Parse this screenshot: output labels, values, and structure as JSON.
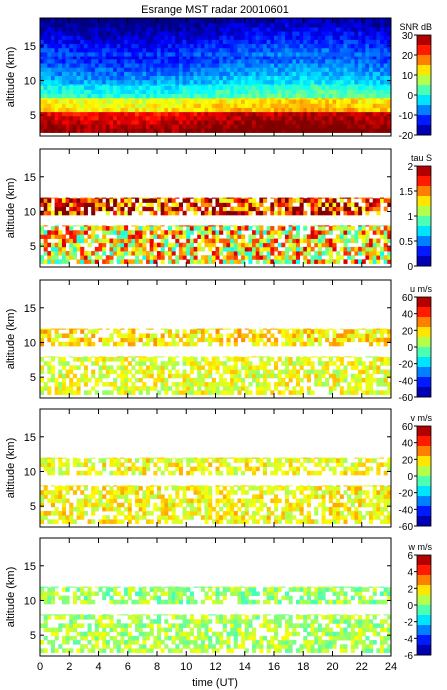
{
  "figure": {
    "title": "Esrange MST radar 20010601",
    "xlabel": "time (UT)",
    "x_ticks": [
      "0",
      "2",
      "4",
      "6",
      "8",
      "10",
      "12",
      "14",
      "16",
      "18",
      "20",
      "22",
      "24"
    ]
  },
  "chart_data": [
    {
      "type": "heatmap",
      "title": "Esrange MST radar 20010601",
      "xlabel": "",
      "ylabel": "altitude (km)",
      "xlim": [
        0,
        24
      ],
      "ylim": [
        2,
        19
      ],
      "y_ticks": [
        "5",
        "10",
        "15"
      ],
      "colorbar": {
        "label": "SNR dB",
        "range": [
          -20,
          30
        ],
        "ticks": [
          "30",
          "20",
          "10",
          "0",
          "-10",
          "-20"
        ],
        "colormap": "jet"
      },
      "field": "snr",
      "layers": [
        {
          "alt": [
            2.5,
            5.5
          ],
          "value": 27
        },
        {
          "alt": [
            5.5,
            7.5
          ],
          "value": 12
        },
        {
          "alt": [
            7.5,
            9.5
          ],
          "value": 0
        },
        {
          "alt": [
            9.5,
            13.5
          ],
          "value": -8
        },
        {
          "alt": [
            13.5,
            19
          ],
          "value": -15
        }
      ]
    },
    {
      "type": "heatmap",
      "xlabel": "",
      "ylabel": "altitude (km)",
      "xlim": [
        0,
        24
      ],
      "ylim": [
        2,
        19
      ],
      "y_ticks": [
        "5",
        "10",
        "15"
      ],
      "colorbar": {
        "label": "tau S",
        "range": [
          0,
          2
        ],
        "ticks": [
          "2",
          "1.5",
          "1",
          "0.5",
          "0"
        ],
        "colormap": "jet"
      },
      "field": "tau",
      "layers": [
        {
          "alt": [
            2.5,
            8.0
          ],
          "value": 1.3
        },
        {
          "alt": [
            9.5,
            12.0
          ],
          "value": 1.7
        }
      ]
    },
    {
      "type": "heatmap",
      "xlabel": "",
      "ylabel": "altitude (km)",
      "xlim": [
        0,
        24
      ],
      "ylim": [
        2,
        19
      ],
      "y_ticks": [
        "5",
        "10",
        "15"
      ],
      "colorbar": {
        "label": "u m/s",
        "range": [
          -60,
          60
        ],
        "ticks": [
          "60",
          "40",
          "20",
          "0",
          "-20",
          "-40",
          "-60"
        ],
        "colormap": "jet"
      },
      "field": "u",
      "layers": [
        {
          "alt": [
            2.5,
            8.0
          ],
          "value": 12
        },
        {
          "alt": [
            9.5,
            12.0
          ],
          "value": 18
        }
      ]
    },
    {
      "type": "heatmap",
      "xlabel": "",
      "ylabel": "altitude (km)",
      "xlim": [
        0,
        24
      ],
      "ylim": [
        2,
        19
      ],
      "y_ticks": [
        "5",
        "10",
        "15"
      ],
      "colorbar": {
        "label": "v m/s",
        "range": [
          -60,
          60
        ],
        "ticks": [
          "60",
          "40",
          "20",
          "0",
          "-20",
          "-40",
          "-60"
        ],
        "colormap": "jet"
      },
      "field": "v",
      "layers": [
        {
          "alt": [
            2.5,
            8.0
          ],
          "value": 15
        },
        {
          "alt": [
            9.5,
            12.0
          ],
          "value": 14
        }
      ]
    },
    {
      "type": "heatmap",
      "xlabel": "time (UT)",
      "ylabel": "altitude (km)",
      "xlim": [
        0,
        24
      ],
      "ylim": [
        2,
        19
      ],
      "y_ticks": [
        "5",
        "10",
        "15"
      ],
      "colorbar": {
        "label": "w m/s",
        "range": [
          -6,
          6
        ],
        "ticks": [
          "6",
          "4",
          "2",
          "0",
          "-2",
          "-4",
          "-6"
        ],
        "colormap": "jet"
      },
      "field": "w",
      "layers": [
        {
          "alt": [
            2.5,
            8.0
          ],
          "value": 0.5
        },
        {
          "alt": [
            9.5,
            12.0
          ],
          "value": 0.3
        }
      ]
    }
  ]
}
